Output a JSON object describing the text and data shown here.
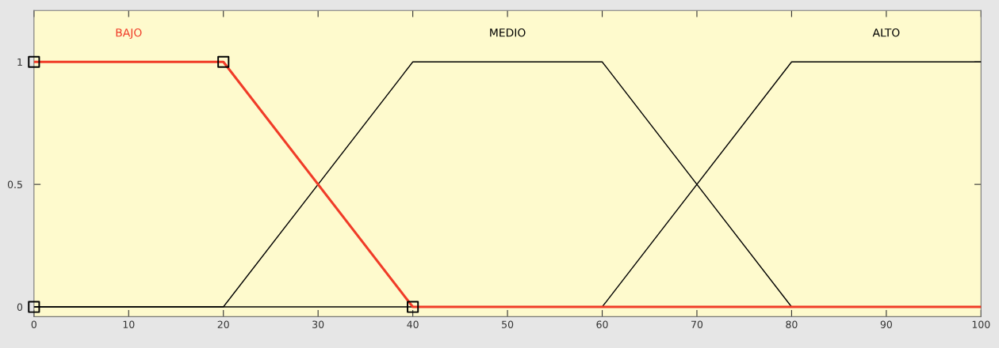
{
  "chart_data": {
    "type": "line",
    "series": [
      {
        "name": "MEDIO",
        "color": "#000000",
        "x": [
          0,
          20,
          40,
          60,
          80,
          100
        ],
        "values": [
          0,
          0,
          1,
          1,
          0,
          0
        ]
      },
      {
        "name": "ALTO",
        "color": "#000000",
        "x": [
          0,
          60,
          80,
          100
        ],
        "values": [
          0,
          0,
          1,
          1
        ]
      },
      {
        "name": "BAJO",
        "color": "#f03c28",
        "x": [
          0,
          20,
          40,
          100
        ],
        "values": [
          1,
          1,
          0,
          0
        ]
      },
      {
        "type": "scatter",
        "color": "#000000",
        "marker": "square",
        "x": [
          0,
          0,
          20,
          40
        ],
        "values": [
          0,
          1,
          1,
          0
        ]
      }
    ],
    "xlim": [
      0,
      100
    ],
    "xticks": [
      0,
      10,
      20,
      30,
      40,
      50,
      60,
      70,
      80,
      90,
      100
    ],
    "ylim": [
      -0.04,
      1.21
    ],
    "yticks": [
      0,
      0.5,
      1
    ],
    "grid": false,
    "legend": false
  }
}
